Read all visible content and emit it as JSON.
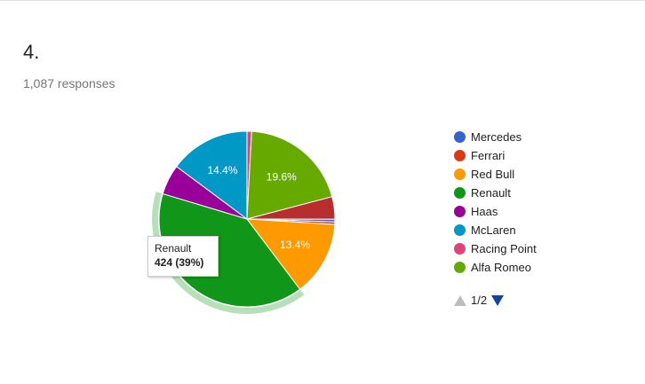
{
  "question": {
    "number": "4.",
    "responses": "1,087 responses"
  },
  "chart_data": {
    "type": "pie",
    "categories": [
      "Mercedes",
      "Ferrari",
      "Red Bull",
      "Renault",
      "Haas",
      "McLaren",
      "Racing Point",
      "Alfa Romeo"
    ],
    "values": [
      5,
      5,
      146,
      424,
      59,
      157,
      9,
      213
    ],
    "colors": [
      "#3366cc",
      "#dc3912",
      "#ff9900",
      "#109618",
      "#990099",
      "#0099c6",
      "#dd4477",
      "#66aa00"
    ],
    "extra_slice": {
      "value": 44,
      "color": "#b82e2e"
    },
    "slice_labels": [
      {
        "category": "Alfa Romeo",
        "text": "19.6%"
      },
      {
        "category": "McLaren",
        "text": "14.4%"
      },
      {
        "category": "Red Bull",
        "text": "13.4%"
      }
    ],
    "highlighted": "Renault",
    "tooltip": {
      "label": "Renault",
      "value": "424 (39%)"
    },
    "legend_position": "right"
  },
  "legend": {
    "items": [
      {
        "label": "Mercedes",
        "color": "#3366cc"
      },
      {
        "label": "Ferrari",
        "color": "#dc3912"
      },
      {
        "label": "Red Bull",
        "color": "#ff9900"
      },
      {
        "label": "Renault",
        "color": "#109618"
      },
      {
        "label": "Haas",
        "color": "#990099"
      },
      {
        "label": "McLaren",
        "color": "#0099c6"
      },
      {
        "label": "Racing Point",
        "color": "#dd4477"
      },
      {
        "label": "Alfa Romeo",
        "color": "#66aa00"
      }
    ],
    "page": "1/2"
  }
}
